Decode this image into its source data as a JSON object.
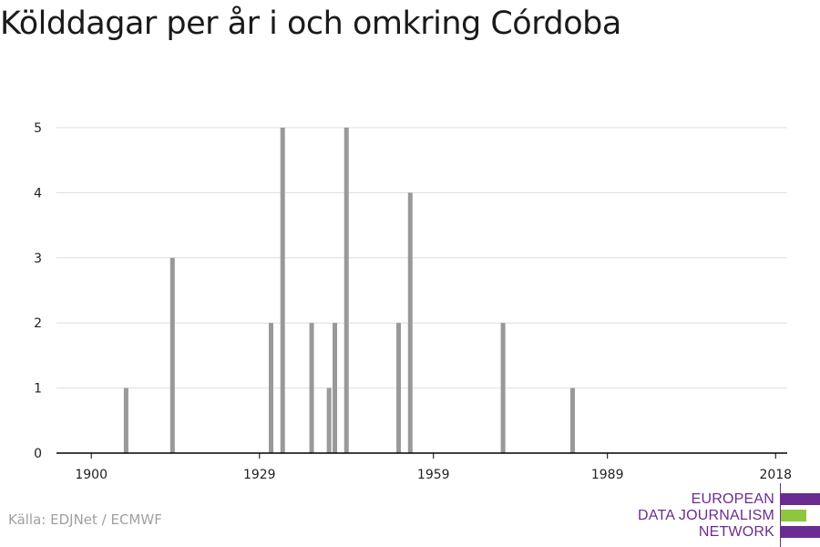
{
  "title": "Kölddagar per år i och omkring Córdoba",
  "source": "Källa: EDJNet / ECMWF",
  "logo": {
    "lines": [
      "EUROPEAN",
      "DATA JOURNALISM",
      "NETWORK"
    ],
    "purple": "#6b2c91",
    "green": "#8dc63f"
  },
  "colors": {
    "bar": "#999999",
    "grid": "#dddddd",
    "axis": "#000000",
    "tick_text": "#222222"
  },
  "chart_data": {
    "type": "bar",
    "title": "Kölddagar per år i och omkring Córdoba",
    "xlabel": "",
    "ylabel": "",
    "x_ticks": [
      1900,
      1929,
      1959,
      1989,
      2018
    ],
    "y_ticks": [
      0,
      1,
      2,
      3,
      4,
      5
    ],
    "xlim": [
      1894,
      2020
    ],
    "ylim": [
      0,
      5.5
    ],
    "grid": true,
    "x": [
      1906,
      1914,
      1931,
      1933,
      1938,
      1941,
      1942,
      1944,
      1953,
      1955,
      1971,
      1983
    ],
    "values": [
      1,
      3,
      2,
      5,
      2,
      1,
      2,
      5,
      2,
      4,
      2,
      1
    ]
  }
}
